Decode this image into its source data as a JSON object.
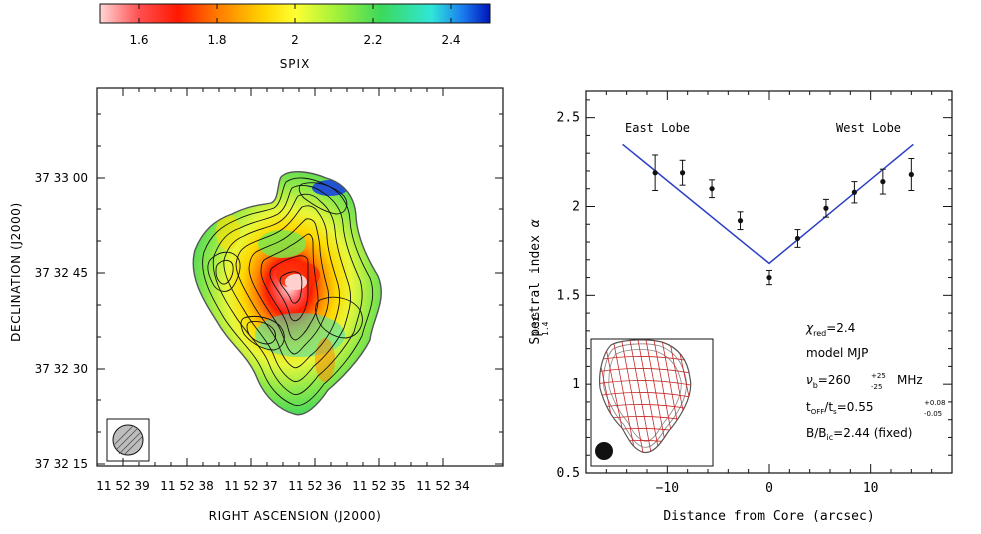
{
  "colorbar": {
    "label": "SPIX",
    "range": [
      1.5,
      2.5
    ],
    "ticks": [
      "1.6",
      "1.8",
      "2",
      "2.2",
      "2.4"
    ],
    "tick_values": [
      1.6,
      1.8,
      2.0,
      2.2,
      2.4
    ]
  },
  "map_panel": {
    "xlabel": "RIGHT ASCENSION (J2000)",
    "ylabel": "DECLINATION (J2000)",
    "x_ticks": [
      "11 52 39",
      "11 52 38",
      "11 52 37",
      "11 52 36",
      "11 52 35",
      "11 52 34"
    ],
    "y_ticks": [
      "37 33 00",
      "37 32 45",
      "37 32 30",
      "37 32 15"
    ]
  },
  "chart_data": {
    "type": "scatter",
    "title": "",
    "xlabel": "Distance from Core (arcsec)",
    "ylabel": "Spectral index",
    "ylabel_symbol": "α",
    "ylabel_sup": "0.325",
    "ylabel_sub": "1.4",
    "xlim": [
      -18,
      18
    ],
    "ylim": [
      0.5,
      2.65
    ],
    "x_ticks": [
      -10,
      0,
      10
    ],
    "y_ticks": [
      0.5,
      1,
      1.5,
      2,
      2.5
    ],
    "y_tick_labels": [
      "0.5",
      "1",
      "1.5",
      "2",
      "2.5"
    ],
    "series": [
      {
        "name": "data",
        "x": [
          -11.2,
          -8.5,
          -5.6,
          -2.8,
          0,
          2.8,
          5.6,
          8.4,
          11.2,
          14.0
        ],
        "y": [
          2.19,
          2.19,
          2.1,
          1.92,
          1.6,
          1.82,
          1.99,
          2.08,
          2.14,
          2.18
        ],
        "yerr": [
          0.1,
          0.07,
          0.05,
          0.05,
          0.04,
          0.05,
          0.05,
          0.06,
          0.07,
          0.09
        ]
      },
      {
        "name": "model",
        "x": [
          -14.4,
          0,
          14.2
        ],
        "y": [
          2.35,
          1.68,
          2.35
        ]
      }
    ],
    "annotations": {
      "east_lobe": "East Lobe",
      "west_lobe": "West Lobe",
      "chi_label": "χ",
      "chi_sub": "red",
      "chi_value": "=2.4",
      "model_line": "model MJP",
      "nu_label": "ν",
      "nu_sub": "b",
      "nu_value": "=260",
      "nu_err_up": "+25",
      "nu_err_down": "-25",
      "nu_unit": "MHz",
      "t_label": "t",
      "t_sub1": "OFF",
      "t_sep": "/t",
      "t_sub2": "s",
      "t_value": "=0.55",
      "t_err_up": "+0.08",
      "t_err_down": "-0.05",
      "b_label": "B/B",
      "b_sub": "ic",
      "b_value": "=2.44 (fixed)"
    }
  }
}
